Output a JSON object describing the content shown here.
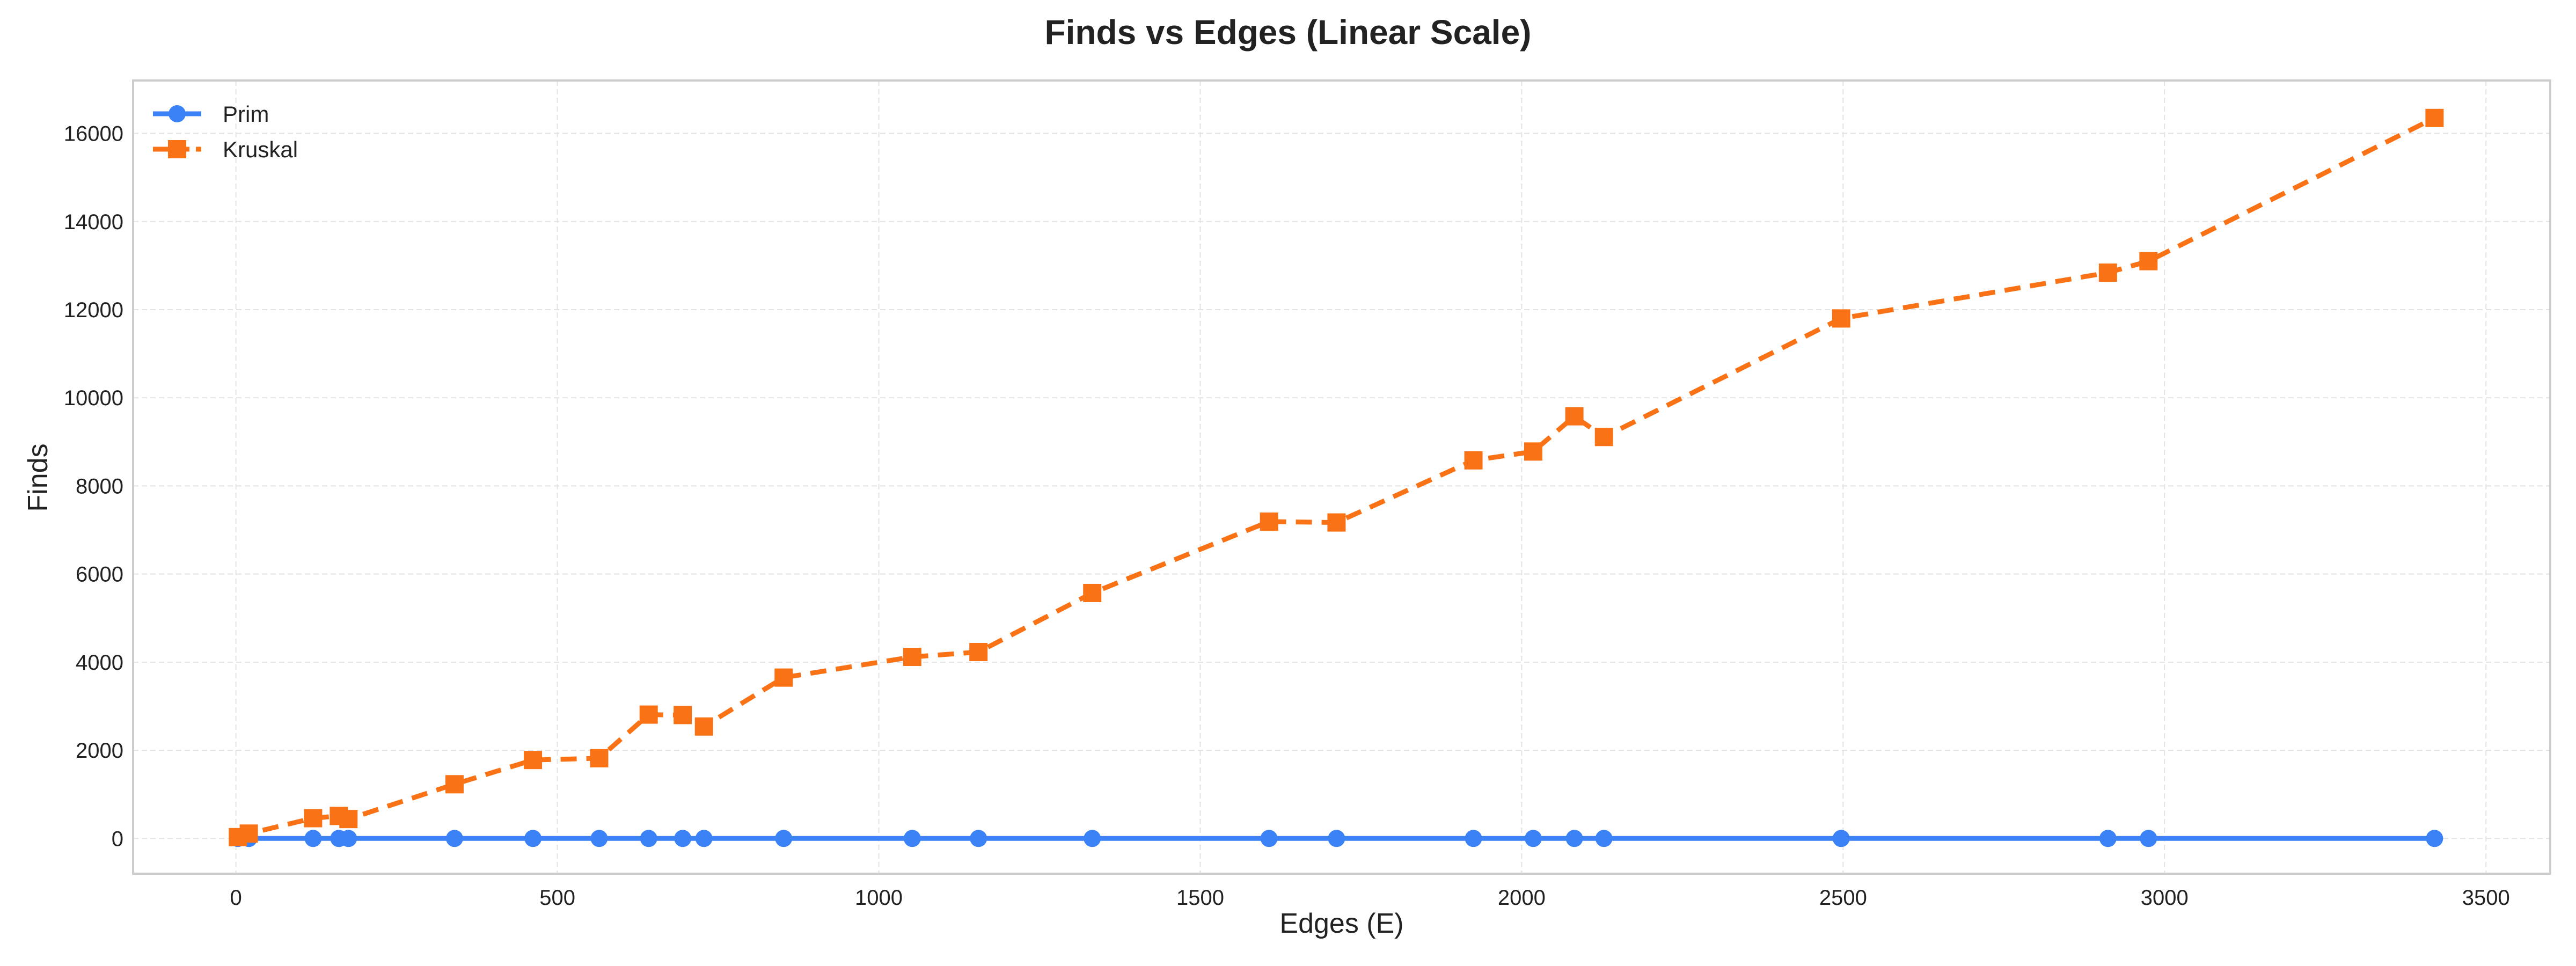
{
  "chart_data": {
    "type": "line",
    "title": "Finds vs Edges (Linear Scale)",
    "xlabel": "Edges (E)",
    "ylabel": "Finds",
    "xlim": [
      -160,
      3600
    ],
    "ylim": [
      -800,
      17200
    ],
    "xticks": [
      0,
      500,
      1000,
      1500,
      2000,
      2500,
      3000,
      3500
    ],
    "yticks": [
      0,
      2000,
      4000,
      6000,
      8000,
      10000,
      12000,
      14000,
      16000
    ],
    "grid": true,
    "legend_position": "top-left",
    "series": [
      {
        "name": "Prim",
        "color": "#3b82f6",
        "line_style": "solid",
        "marker": "circle",
        "x": [
          3,
          20,
          120,
          160,
          175,
          340,
          462,
          565,
          642,
          695,
          728,
          852,
          1052,
          1155,
          1332,
          1607,
          1712,
          1925,
          2018,
          2082,
          2128,
          2497,
          2912,
          2975,
          3420
        ],
        "y": [
          0,
          0,
          0,
          0,
          0,
          0,
          0,
          0,
          0,
          0,
          0,
          0,
          0,
          0,
          0,
          0,
          0,
          0,
          0,
          0,
          0,
          0,
          0,
          0,
          0
        ]
      },
      {
        "name": "Kruskal",
        "color": "#f97316",
        "line_style": "dashed",
        "marker": "square",
        "x": [
          3,
          20,
          120,
          160,
          175,
          340,
          462,
          565,
          642,
          695,
          728,
          852,
          1052,
          1155,
          1332,
          1607,
          1712,
          1925,
          2018,
          2082,
          2128,
          2497,
          2912,
          2975,
          3420
        ],
        "y": [
          30,
          110,
          460,
          510,
          440,
          1230,
          1780,
          1820,
          2810,
          2800,
          2540,
          3650,
          4120,
          4230,
          5570,
          7190,
          7170,
          8580,
          8780,
          9580,
          9110,
          11800,
          12840,
          13100,
          16350
        ]
      }
    ]
  }
}
